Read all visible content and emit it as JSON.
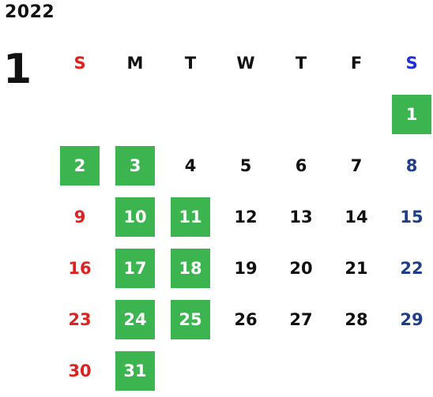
{
  "year": "2022",
  "month": "1",
  "colors": {
    "highlight": "#3cb550",
    "sunday": "#e0221f",
    "saturday_header": "#1d2fd8",
    "saturday": "#1e3d8a",
    "weekday": "#111111"
  },
  "weekday_headers": [
    "S",
    "M",
    "T",
    "W",
    "T",
    "F",
    "S"
  ],
  "start_weekday_index": 6,
  "days_in_month": 31,
  "highlighted_days": [
    1,
    2,
    3,
    10,
    11,
    17,
    18,
    24,
    25,
    31
  ]
}
